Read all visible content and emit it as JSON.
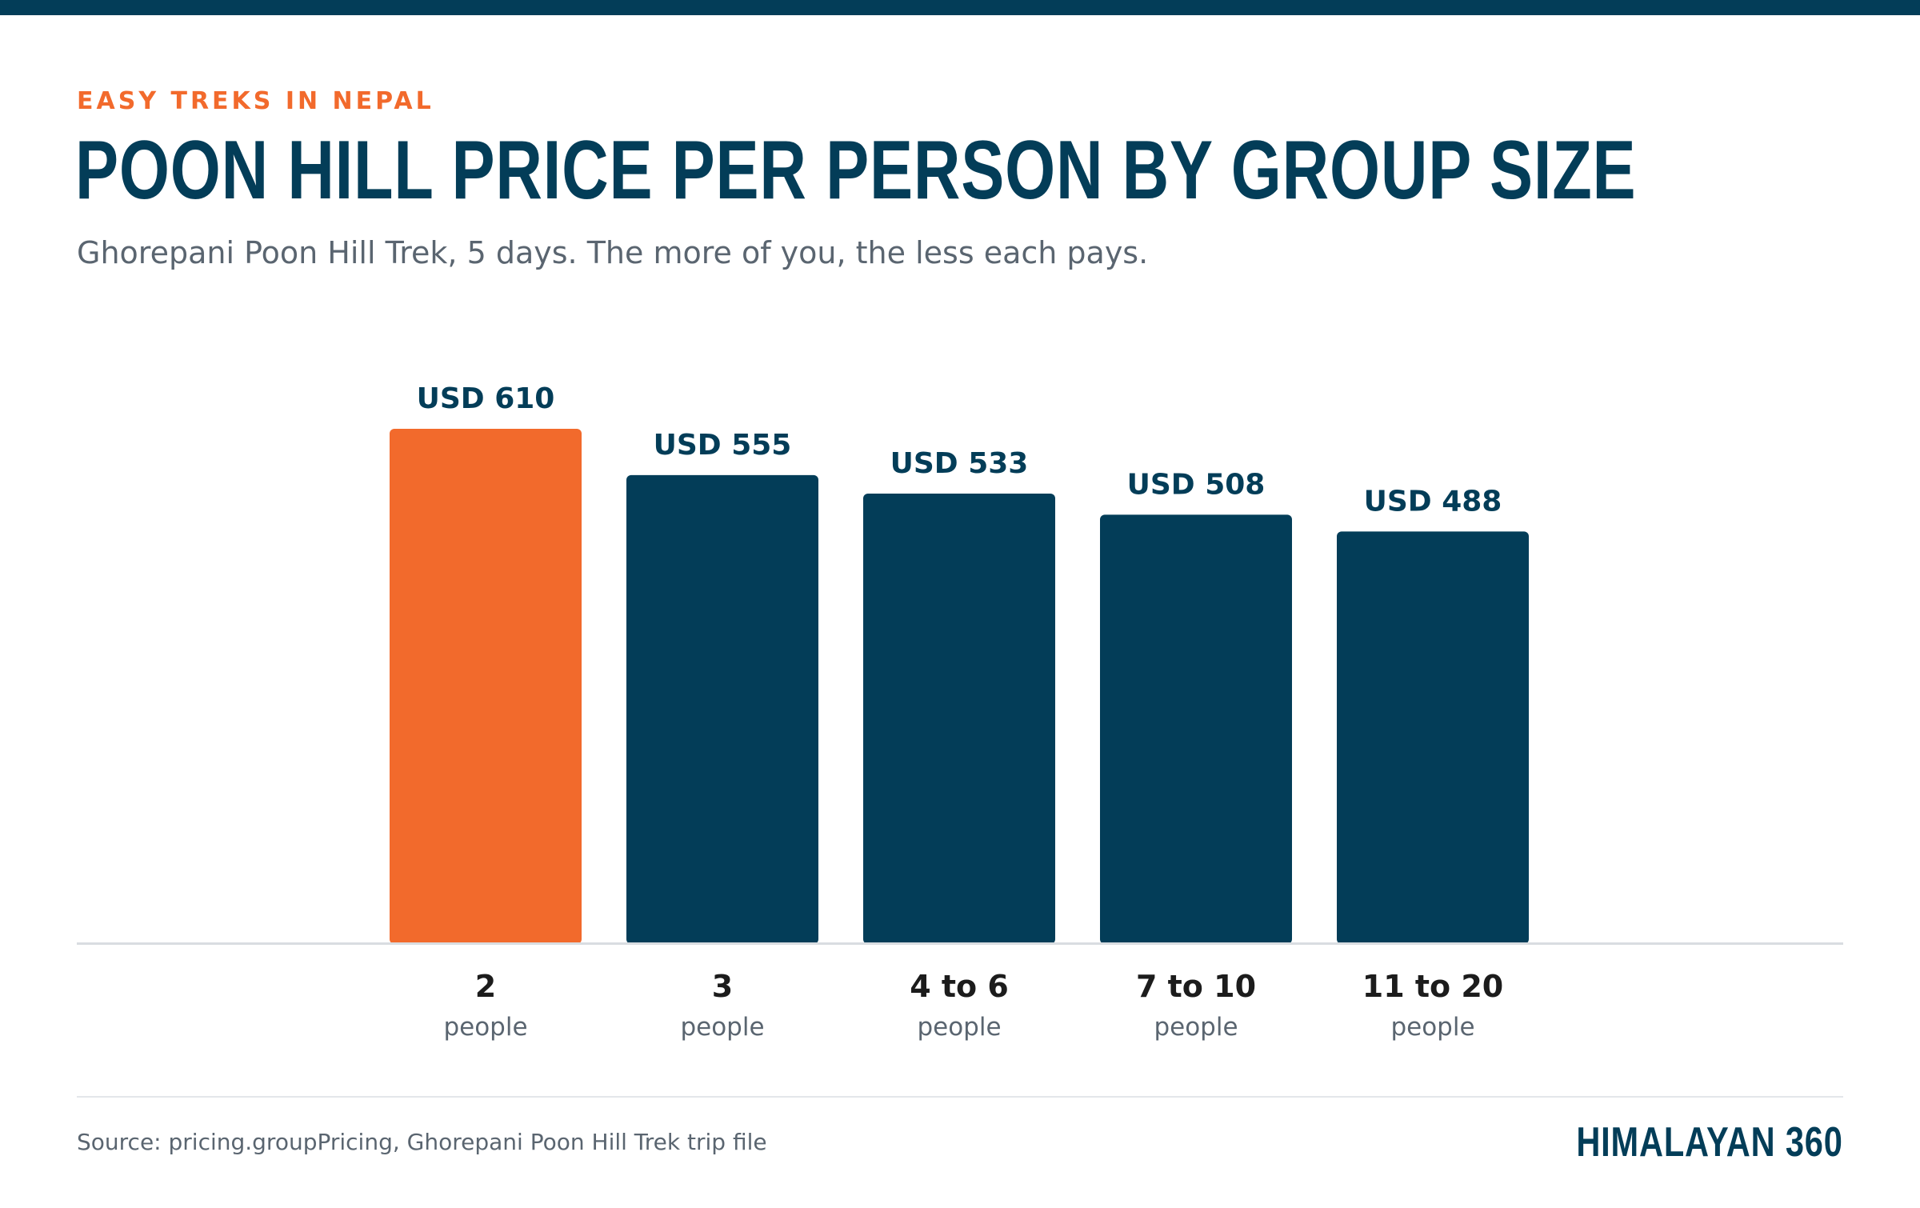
{
  "header": {
    "eyebrow": "EASY TREKS IN NEPAL",
    "title": "POON HILL PRICE PER PERSON BY GROUP SIZE",
    "subtitle": "Ghorepani Poon Hill Trek, 5 days. The more of you, the less each pays."
  },
  "footer": {
    "source": "Source: pricing.groupPricing, Ghorepani Poon Hill Trek trip file",
    "brand": "HIMALAYAN 360"
  },
  "colors": {
    "highlight": "#f26a2c",
    "bar": "#033d58",
    "axis": "#d9dde1",
    "category_text": "#1c1c1c",
    "unit_text": "#5a6570"
  },
  "chart_data": {
    "type": "bar",
    "title": "POON HILL PRICE PER PERSON BY GROUP SIZE",
    "categories": [
      "2",
      "3",
      "4 to 6",
      "7 to 10",
      "11 to 20"
    ],
    "category_sublabel": "people",
    "values": [
      610,
      555,
      533,
      508,
      488
    ],
    "value_labels": [
      "USD 610",
      "USD 555",
      "USD 533",
      "USD 508",
      "USD 488"
    ],
    "highlight_index": 0,
    "ylim": [
      0,
      610
    ],
    "xlabel": "",
    "ylabel": "",
    "grid": false,
    "legend": "none"
  }
}
